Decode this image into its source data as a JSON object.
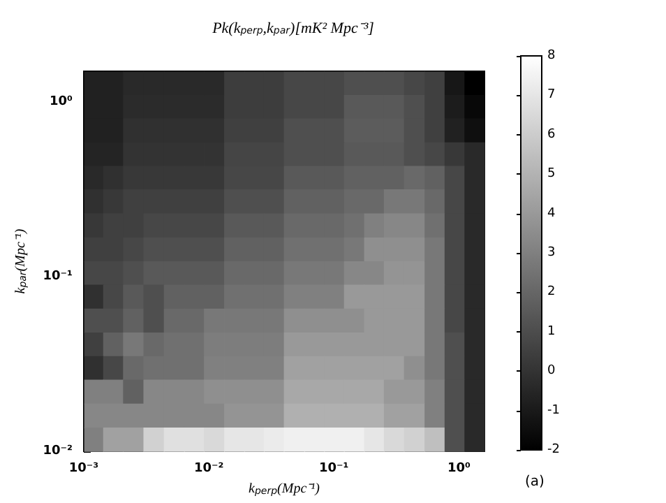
{
  "chart_data": {
    "type": "scatter",
    "marker": "square",
    "title": "Pk(k$_{perp}$,k$_{par}$)[mK² Mpc⁻³]",
    "xlabel": "k$_{perp}$(Mpc⁻¹)",
    "ylabel": "k$_{par}$(Mpc⁻¹)",
    "annotations": [
      "(a)"
    ],
    "log": "xy",
    "xlim": [
      0.001,
      1.6
    ],
    "ylim": [
      0.01,
      1.5
    ],
    "xticks": [
      {
        "value": 0.001,
        "label": "10⁻³"
      },
      {
        "value": 0.01,
        "label": "10⁻²"
      },
      {
        "value": 0.1,
        "label": "10⁻¹"
      },
      {
        "value": 1,
        "label": "10⁰"
      }
    ],
    "yticks": [
      {
        "value": 0.01,
        "label": "10⁻²"
      },
      {
        "value": 0.1,
        "label": "10⁻¹"
      },
      {
        "value": 1,
        "label": "10⁰"
      }
    ],
    "clim": [
      -2,
      8
    ],
    "cticks": [
      -2,
      -1,
      0,
      1,
      2,
      3,
      4,
      5,
      6,
      7,
      8
    ],
    "x": [
      0.0012,
      0.0017,
      0.0025,
      0.0036,
      0.0053,
      0.0076,
      0.011,
      0.016,
      0.023,
      0.033,
      0.048,
      0.07,
      0.1,
      0.145,
      0.21,
      0.3,
      0.44,
      0.64,
      0.92,
      1.33,
      0.0012,
      0.0017,
      0.0025,
      0.0036,
      0.0053,
      0.0076,
      0.011,
      0.016,
      0.023,
      0.033,
      0.048,
      0.07,
      0.1,
      0.145,
      0.21,
      0.3,
      0.44,
      0.64,
      0.92,
      1.33,
      0.0012,
      0.0017,
      0.0025,
      0.0036,
      0.0053,
      0.0076,
      0.011,
      0.016,
      0.023,
      0.033,
      0.048,
      0.07,
      0.1,
      0.145,
      0.21,
      0.3,
      0.44,
      0.64,
      0.92,
      1.33,
      0.0012,
      0.0017,
      0.0025,
      0.0036,
      0.0053,
      0.0076,
      0.011,
      0.016,
      0.023,
      0.033,
      0.048,
      0.07,
      0.1,
      0.145,
      0.21,
      0.3,
      0.44,
      0.64,
      0.92,
      1.33,
      0.0012,
      0.0017,
      0.0025,
      0.0036,
      0.0053,
      0.0076,
      0.011,
      0.016,
      0.023,
      0.033,
      0.048,
      0.07,
      0.1,
      0.145,
      0.21,
      0.3,
      0.44,
      0.64,
      0.92,
      1.33,
      0.0012,
      0.0017,
      0.0025,
      0.0036,
      0.0053,
      0.0076,
      0.011,
      0.016,
      0.023,
      0.033,
      0.048,
      0.07,
      0.1,
      0.145,
      0.21,
      0.3,
      0.44,
      0.64,
      0.92,
      1.33,
      0.0012,
      0.0017,
      0.0025,
      0.0036,
      0.0053,
      0.0076,
      0.011,
      0.016,
      0.023,
      0.033,
      0.048,
      0.07,
      0.1,
      0.145,
      0.21,
      0.3,
      0.44,
      0.64,
      0.92,
      1.33,
      0.0012,
      0.0017,
      0.0025,
      0.0036,
      0.0053,
      0.0076,
      0.011,
      0.016,
      0.023,
      0.033,
      0.048,
      0.07,
      0.1,
      0.145,
      0.21,
      0.3,
      0.44,
      0.64,
      0.92,
      1.33,
      0.0012,
      0.0017,
      0.0025,
      0.0036,
      0.0053,
      0.0076,
      0.011,
      0.016,
      0.023,
      0.033,
      0.048,
      0.07,
      0.1,
      0.145,
      0.21,
      0.3,
      0.44,
      0.64,
      0.92,
      1.33,
      0.0012,
      0.0017,
      0.0025,
      0.0036,
      0.0053,
      0.0076,
      0.011,
      0.016,
      0.023,
      0.033,
      0.048,
      0.07,
      0.1,
      0.145,
      0.21,
      0.3,
      0.44,
      0.64,
      0.92,
      1.33,
      0.0012,
      0.0017,
      0.0025,
      0.0036,
      0.0053,
      0.0076,
      0.011,
      0.016,
      0.023,
      0.033,
      0.048,
      0.07,
      0.1,
      0.145,
      0.21,
      0.3,
      0.44,
      0.64,
      0.92,
      1.33,
      0.0012,
      0.0017,
      0.0025,
      0.0036,
      0.0053,
      0.0076,
      0.011,
      0.016,
      0.023,
      0.033,
      0.048,
      0.07,
      0.1,
      0.145,
      0.21,
      0.3,
      0.44,
      0.64,
      0.92,
      1.33,
      0.0012,
      0.0017,
      0.0025,
      0.0036,
      0.0053,
      0.0076,
      0.011,
      0.016,
      0.023,
      0.033,
      0.048,
      0.07,
      0.1,
      0.145,
      0.21,
      0.3,
      0.44,
      0.64,
      0.92,
      1.33,
      0.0012,
      0.0017,
      0.0025,
      0.0036,
      0.0053,
      0.0076,
      0.011,
      0.016,
      0.023,
      0.033,
      0.048,
      0.07,
      0.1,
      0.145,
      0.21,
      0.3,
      0.44,
      0.64,
      0.92,
      1.33,
      0.0012,
      0.0017,
      0.0025,
      0.0036,
      0.0053,
      0.0076,
      0.011,
      0.016,
      0.023,
      0.033,
      0.048,
      0.07,
      0.1,
      0.145,
      0.21,
      0.3,
      0.44,
      0.64,
      0.92,
      1.33,
      0.0012,
      0.0017,
      0.0025,
      0.0036,
      0.0053,
      0.0076,
      0.011,
      0.016,
      0.023,
      0.033,
      0.048,
      0.07,
      0.1,
      0.145,
      0.21,
      0.3,
      0.44,
      0.64,
      0.92,
      1.33
    ],
    "values": [
      1.28,
      1.28,
      1.28,
      1.28,
      1.28,
      1.28,
      1.28,
      1.28,
      1.28,
      1.28,
      1.28,
      1.28,
      1.28,
      1.28,
      1.28,
      1.28,
      1.28,
      1.28,
      1.28,
      1.28,
      0.94,
      0.94,
      0.94,
      0.94,
      0.94,
      0.94,
      0.94,
      0.94,
      0.94,
      0.94,
      0.94,
      0.94,
      0.94,
      0.94,
      0.94,
      0.94,
      0.94,
      0.94,
      0.94,
      0.94,
      0.69,
      0.69,
      0.69,
      0.69,
      0.69,
      0.69,
      0.69,
      0.69,
      0.69,
      0.69,
      0.69,
      0.69,
      0.69,
      0.69,
      0.69,
      0.69,
      0.69,
      0.69,
      0.69,
      0.69,
      0.5,
      0.5,
      0.5,
      0.5,
      0.5,
      0.5,
      0.5,
      0.5,
      0.5,
      0.5,
      0.5,
      0.5,
      0.5,
      0.5,
      0.5,
      0.5,
      0.5,
      0.5,
      0.5,
      0.5,
      0.37,
      0.37,
      0.37,
      0.37,
      0.37,
      0.37,
      0.37,
      0.37,
      0.37,
      0.37,
      0.37,
      0.37,
      0.37,
      0.37,
      0.37,
      0.37,
      0.37,
      0.37,
      0.37,
      0.37,
      0.27,
      0.27,
      0.27,
      0.27,
      0.27,
      0.27,
      0.27,
      0.27,
      0.27,
      0.27,
      0.27,
      0.27,
      0.27,
      0.27,
      0.27,
      0.27,
      0.27,
      0.27,
      0.27,
      0.27,
      0.196,
      0.196,
      0.196,
      0.196,
      0.196,
      0.196,
      0.196,
      0.196,
      0.196,
      0.196,
      0.196,
      0.196,
      0.196,
      0.196,
      0.196,
      0.196,
      0.196,
      0.196,
      0.196,
      0.196,
      0.143,
      0.143,
      0.143,
      0.143,
      0.143,
      0.143,
      0.143,
      0.143,
      0.143,
      0.143,
      0.143,
      0.143,
      0.143,
      0.143,
      0.143,
      0.143,
      0.143,
      0.143,
      0.143,
      0.143,
      0.105,
      0.105,
      0.105,
      0.105,
      0.105,
      0.105,
      0.105,
      0.105,
      0.105,
      0.105,
      0.105,
      0.105,
      0.105,
      0.105,
      0.105,
      0.105,
      0.105,
      0.105,
      0.105,
      0.105,
      0.077,
      0.077,
      0.077,
      0.077,
      0.077,
      0.077,
      0.077,
      0.077,
      0.077,
      0.077,
      0.077,
      0.077,
      0.077,
      0.077,
      0.077,
      0.077,
      0.077,
      0.077,
      0.077,
      0.077,
      0.056,
      0.056,
      0.056,
      0.056,
      0.056,
      0.056,
      0.056,
      0.056,
      0.056,
      0.056,
      0.056,
      0.056,
      0.056,
      0.056,
      0.056,
      0.056,
      0.056,
      0.056,
      0.056,
      0.056,
      0.041,
      0.041,
      0.041,
      0.041,
      0.041,
      0.041,
      0.041,
      0.041,
      0.041,
      0.041,
      0.041,
      0.041,
      0.041,
      0.041,
      0.041,
      0.041,
      0.041,
      0.041,
      0.041,
      0.041,
      0.03,
      0.03,
      0.03,
      0.03,
      0.03,
      0.03,
      0.03,
      0.03,
      0.03,
      0.03,
      0.03,
      0.03,
      0.03,
      0.03,
      0.03,
      0.03,
      0.03,
      0.03,
      0.03,
      0.03,
      0.022,
      0.022,
      0.022,
      0.022,
      0.022,
      0.022,
      0.022,
      0.022,
      0.022,
      0.022,
      0.022,
      0.022,
      0.022,
      0.022,
      0.022,
      0.022,
      0.022,
      0.022,
      0.022,
      0.022,
      0.016,
      0.016,
      0.016,
      0.016,
      0.016,
      0.016,
      0.016,
      0.016,
      0.016,
      0.016,
      0.016,
      0.016,
      0.016,
      0.016,
      0.016,
      0.016,
      0.016,
      0.016,
      0.016,
      0.016,
      0.0117,
      0.0117,
      0.0117,
      0.0117,
      0.0117,
      0.0117,
      0.0117,
      0.0117,
      0.0117,
      0.0117,
      0.0117,
      0.0117,
      0.0117,
      0.0117,
      0.0117,
      0.0117,
      0.0117,
      0.0117,
      0.0117,
      0.0117
    ],
    "cvalues": [
      -0.7,
      -0.7,
      -0.4,
      -0.4,
      -0.4,
      -0.4,
      -0.4,
      0.4,
      0.4,
      0.4,
      0.8,
      0.8,
      0.8,
      1.1,
      1.1,
      1.1,
      0.8,
      0.5,
      -1.1,
      -2,
      -0.7,
      -0.7,
      -0.3,
      -0.3,
      -0.3,
      -0.3,
      -0.3,
      0.4,
      0.4,
      0.4,
      0.8,
      0.8,
      0.8,
      1.5,
      1.5,
      1.5,
      1.1,
      0.5,
      -0.9,
      -1.7,
      -0.7,
      -0.7,
      -0.1,
      -0.1,
      -0.1,
      -0.1,
      -0.1,
      0.5,
      0.5,
      0.5,
      1.1,
      1.1,
      1.1,
      1.6,
      1.6,
      1.6,
      1.1,
      0.5,
      -0.7,
      -1.4,
      -0.6,
      -0.6,
      0,
      0,
      0,
      0,
      0,
      0.7,
      0.7,
      0.7,
      1.1,
      1.1,
      1.1,
      1.5,
      1.5,
      1.5,
      1.1,
      0.8,
      0.2,
      -0.4,
      -0.4,
      -0.1,
      0.2,
      0.2,
      0.2,
      0.2,
      0.2,
      0.8,
      0.8,
      0.8,
      1.5,
      1.5,
      1.5,
      1.8,
      1.8,
      1.8,
      2.1,
      1.8,
      0.8,
      -0.4,
      -0.1,
      0.2,
      0.5,
      0.5,
      0.5,
      0.5,
      0.5,
      1.1,
      1.1,
      1.1,
      1.8,
      1.8,
      1.8,
      2.1,
      2.1,
      2.7,
      2.7,
      2.1,
      0.8,
      -0.4,
      0.2,
      0.5,
      0.5,
      0.8,
      0.8,
      0.8,
      0.8,
      1.5,
      1.5,
      1.5,
      2.1,
      2.1,
      2.1,
      2.4,
      3,
      3.3,
      3.3,
      2.4,
      0.8,
      -0.4,
      0.5,
      0.5,
      0.8,
      1.1,
      1.1,
      1.1,
      1.1,
      1.8,
      1.8,
      1.8,
      2.4,
      2.4,
      2.4,
      2.7,
      3.6,
      3.6,
      3.6,
      2.7,
      0.8,
      -0.4,
      0.8,
      0.8,
      1.1,
      1.5,
      1.5,
      1.5,
      1.5,
      2.1,
      2.1,
      2.1,
      2.7,
      2.7,
      2.7,
      3.3,
      3.3,
      3.8,
      3.8,
      2.7,
      0.8,
      -0.4,
      -0.1,
      0.8,
      1.5,
      1.1,
      1.8,
      1.8,
      1.8,
      2.4,
      2.4,
      2.4,
      3,
      3,
      3,
      4,
      4,
      4,
      4,
      2.7,
      0.8,
      -0.4,
      1.1,
      1.1,
      1.8,
      1.1,
      2.1,
      2.1,
      2.7,
      2.7,
      2.7,
      2.7,
      3.6,
      3.6,
      3.6,
      3.6,
      4,
      4,
      4,
      2.7,
      0.8,
      -0.4,
      0.5,
      1.8,
      2.7,
      2.1,
      2.4,
      2.4,
      2.9,
      2.9,
      2.9,
      2.9,
      4,
      4,
      4,
      4,
      4,
      4,
      4,
      2.7,
      1.1,
      -0.4,
      -0.1,
      0.8,
      2.1,
      2.4,
      2.4,
      2.4,
      3,
      3,
      3,
      3,
      4.3,
      4.3,
      4.3,
      4.3,
      4.3,
      4.3,
      3.6,
      2.7,
      1.1,
      -0.4,
      3,
      3,
      1.8,
      3.3,
      3.3,
      3.3,
      3.6,
      3.6,
      3.6,
      3.6,
      4.6,
      4.6,
      4.6,
      4.6,
      4.6,
      4,
      4,
      3,
      1.1,
      -0.4,
      3.3,
      3.3,
      3.3,
      3.3,
      3.3,
      3.3,
      3.3,
      3.8,
      3.8,
      3.8,
      4.9,
      4.9,
      4.9,
      4.9,
      4.9,
      4.3,
      4.3,
      3,
      1.1,
      -0.4,
      3,
      4.3,
      4.3,
      6.2,
      6.8,
      6.8,
      6.5,
      7,
      7,
      7.2,
      7.4,
      7.4,
      7.4,
      7.4,
      7,
      6.5,
      6.2,
      5.5,
      1.1,
      -0.4
    ]
  }
}
